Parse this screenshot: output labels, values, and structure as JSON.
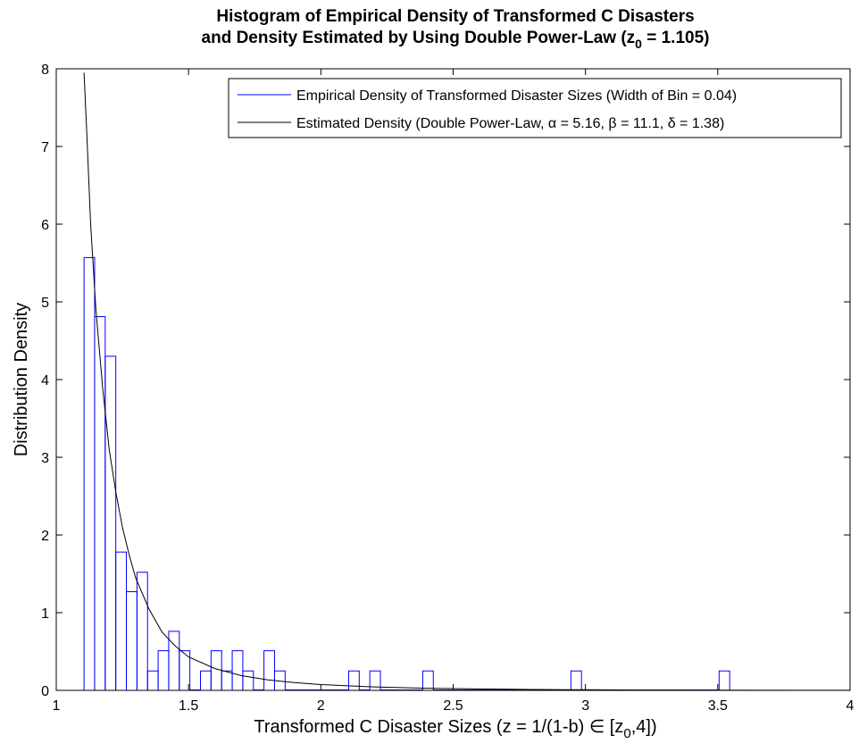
{
  "chart_data": {
    "type": "bar",
    "title": {
      "line1": "Histogram of Empirical Density of Transformed C Disasters",
      "line2_main": "and Density Estimated by Using Double Power-Law (z",
      "line2_sub": "0",
      "line2_tail": " = 1.105)"
    },
    "xlabel": {
      "main": "Transformed C Disaster Sizes (z = 1/(1-b) ∈ [z",
      "sub": "0",
      "tail": ",4])"
    },
    "ylabel": "Distribution Density",
    "xlim": [
      1,
      4
    ],
    "ylim": [
      0,
      8
    ],
    "xticks": [
      "1",
      "1.5",
      "2",
      "2.5",
      "3",
      "3.5",
      "4"
    ],
    "yticks": [
      "0",
      "1",
      "2",
      "3",
      "4",
      "5",
      "6",
      "7",
      "8"
    ],
    "grid": false,
    "legend_position": "top-right",
    "legend": [
      "Empirical Density of Transformed Disaster Sizes (Width of Bin = 0.04)",
      "Estimated Density (Double Power-Law, α = 5.16, β = 11.1, δ = 1.38)"
    ],
    "series": [
      {
        "kind": "histogram",
        "color": "#0000ff",
        "bin_start": 1.105,
        "bin_width": 0.04,
        "values": [
          5.57,
          4.81,
          4.3,
          1.78,
          1.27,
          1.52,
          0.25,
          0.51,
          0.76,
          0.51,
          0,
          0.25,
          0.51,
          0.25,
          0.51,
          0.25,
          0,
          0.51,
          0.25,
          0,
          0,
          0,
          0,
          0,
          0,
          0.25,
          0,
          0.25,
          0,
          0,
          0,
          0,
          0.25,
          0,
          0,
          0,
          0,
          0,
          0,
          0,
          0,
          0,
          0,
          0,
          0,
          0,
          0.25,
          0,
          0,
          0,
          0,
          0,
          0,
          0,
          0,
          0,
          0,
          0,
          0,
          0,
          0.25
        ]
      },
      {
        "kind": "line",
        "color": "#000000",
        "x": [
          1.105,
          1.115,
          1.13,
          1.15,
          1.175,
          1.2,
          1.225,
          1.25,
          1.275,
          1.3,
          1.35,
          1.4,
          1.45,
          1.5,
          1.6,
          1.7,
          1.8,
          1.9,
          2.0,
          2.2,
          2.4,
          2.6,
          2.8,
          3.0,
          3.2,
          3.5,
          4.0
        ],
        "y": [
          7.95,
          7.2,
          6.0,
          4.9,
          3.9,
          3.1,
          2.55,
          2.1,
          1.75,
          1.45,
          1.05,
          0.75,
          0.57,
          0.43,
          0.28,
          0.19,
          0.135,
          0.1,
          0.075,
          0.045,
          0.028,
          0.018,
          0.012,
          0.008,
          0.005,
          0.003,
          0.001
        ]
      }
    ]
  }
}
